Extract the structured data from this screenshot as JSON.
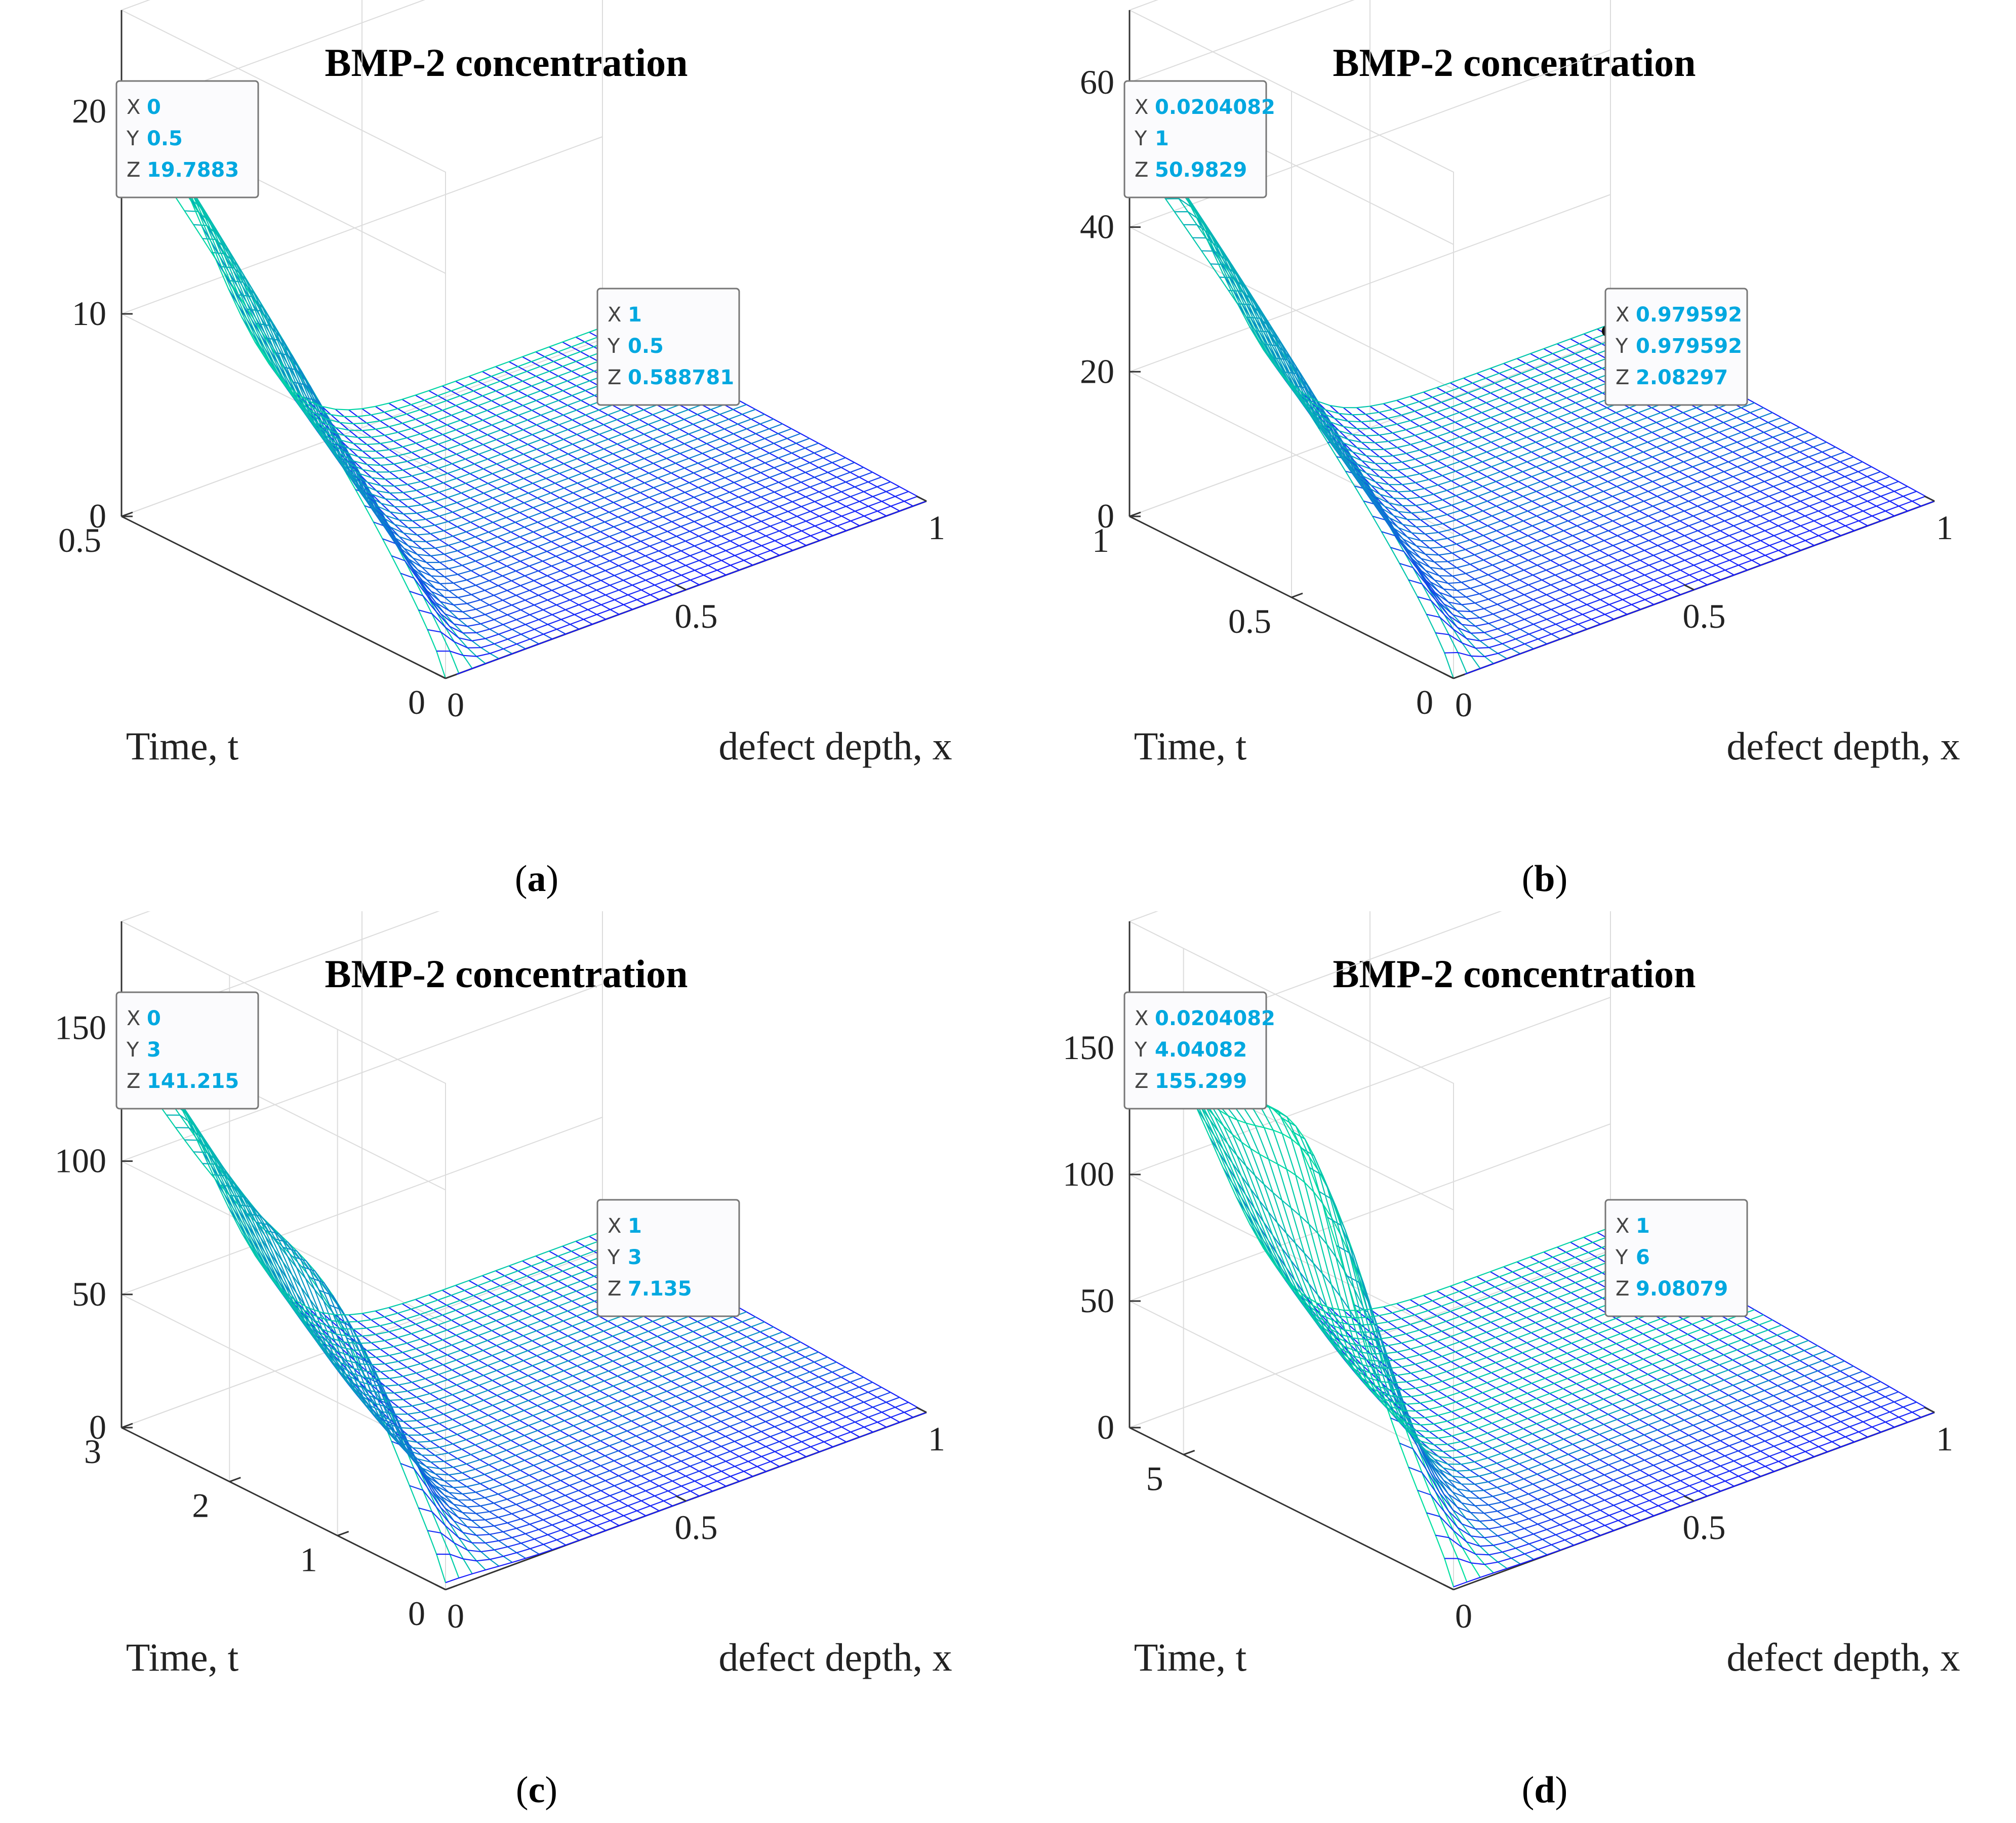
{
  "chart_data": [
    {
      "type": "surface",
      "panel": "a",
      "caption_letter": "a",
      "title": "BMP-2 concentration",
      "xlabel": "defect depth, x",
      "ylabel": "Time, t",
      "xlim": [
        0,
        1
      ],
      "ylim": [
        0,
        0.5
      ],
      "zlim": [
        0,
        25
      ],
      "xticks": [
        "0",
        "0.5",
        "1"
      ],
      "yticks": [
        "0",
        "0.5"
      ],
      "zticks": [
        "0",
        "10",
        "20"
      ],
      "z_peak": 19.7883,
      "z_far": 0.588781,
      "z_mid": 0,
      "t_mid": 0.5,
      "datatips": [
        {
          "x": 0,
          "y": 0.5,
          "z": 19.7883,
          "X": "0",
          "Y": "0.5",
          "Z": "19.7883"
        },
        {
          "x": 1,
          "y": 0.5,
          "z": 0.588781,
          "X": "1",
          "Y": "0.5",
          "Z": "0.588781"
        }
      ]
    },
    {
      "type": "surface",
      "panel": "b",
      "caption_letter": "b",
      "title": "BMP-2 concentration",
      "xlabel": "defect depth, x",
      "ylabel": "Time, t",
      "xlim": [
        0,
        1
      ],
      "ylim": [
        0,
        1
      ],
      "zlim": [
        0,
        70
      ],
      "xticks": [
        "0",
        "0.5",
        "1"
      ],
      "yticks": [
        "0",
        "0.5",
        "1"
      ],
      "zticks": [
        "0",
        "20",
        "40",
        "60"
      ],
      "z_peak": 50.9829,
      "z_far": 2.08297,
      "z_mid": 0,
      "t_mid": 0.5,
      "datatips": [
        {
          "x": 0.0204082,
          "y": 1,
          "z": 50.9829,
          "X": "0.0204082",
          "Y": "1",
          "Z": "50.9829"
        },
        {
          "x": 0.979592,
          "y": 0.979592,
          "z": 2.08297,
          "X": "0.979592",
          "Y": "0.979592",
          "Z": "2.08297"
        }
      ]
    },
    {
      "type": "surface",
      "panel": "c",
      "caption_letter": "c",
      "title": "BMP-2 concentration",
      "xlabel": "defect depth, x",
      "ylabel": "Time, t",
      "xlim": [
        0,
        1
      ],
      "ylim": [
        0,
        3
      ],
      "zlim": [
        0,
        190
      ],
      "xticks": [
        "0",
        "0.5",
        "1"
      ],
      "yticks": [
        "0",
        "1",
        "2",
        "3"
      ],
      "zticks": [
        "0",
        "50",
        "100",
        "150"
      ],
      "z_peak": 141.215,
      "z_far": 7.135,
      "z_mid": 45,
      "t_mid": 1.1,
      "datatips": [
        {
          "x": 0,
          "y": 3,
          "z": 141.215,
          "X": "0",
          "Y": "3",
          "Z": "141.215"
        },
        {
          "x": 1,
          "y": 3,
          "z": 7.135,
          "X": "1",
          "Y": "3",
          "Z": "7.135"
        }
      ]
    },
    {
      "type": "surface",
      "panel": "d",
      "caption_letter": "d",
      "title": "BMP-2 concentration",
      "xlabel": "defect depth, x",
      "ylabel": "Time, t",
      "xlim": [
        0,
        1
      ],
      "ylim": [
        0,
        6
      ],
      "zlim": [
        0,
        200
      ],
      "xticks": [
        "0",
        "0.5",
        "1"
      ],
      "yticks": [
        "5"
      ],
      "zticks": [
        "0",
        "50",
        "100",
        "150"
      ],
      "z_peak": 155.299,
      "z_far": 9.08079,
      "z_mid": 120,
      "t_mid": 3,
      "datatips": [
        {
          "x": 0.0204082,
          "y": 4.04082,
          "z": 155.299,
          "X": "0.0204082",
          "Y": "4.04082",
          "Z": "155.299"
        },
        {
          "x": 1,
          "y": 6,
          "z": 9.08079,
          "X": "1",
          "Y": "6",
          "Z": "9.08079"
        }
      ]
    }
  ],
  "colors": {
    "surface_low": "#1a1aff",
    "surface_high": "#00e0a0",
    "tip_value": "#00a8e0"
  }
}
